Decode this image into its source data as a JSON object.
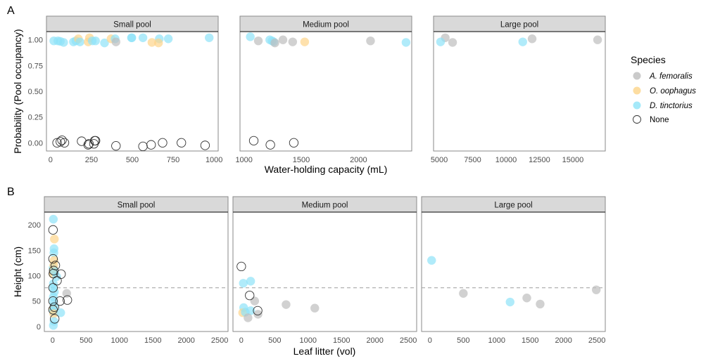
{
  "chart_data": [
    {
      "id": "A",
      "type": "scatter",
      "tag": "A",
      "ylabel": "Probability (Pool occupancy)",
      "xlabel": "Water-holding capacity (mL)",
      "yticks": [
        0.0,
        0.25,
        0.5,
        0.75,
        1.0
      ],
      "ytick_labels": [
        "0.00",
        "0.25",
        "0.50",
        "0.75",
        "1.00"
      ],
      "ylim": [
        -0.08,
        1.08
      ],
      "grid": false,
      "panels": [
        {
          "strip": "Small pool",
          "xlim": [
            -25,
            1025
          ],
          "xticks": [
            0,
            250,
            500,
            750,
            1000
          ],
          "points": [
            {
              "x": 20,
              "y": 0.99,
              "s": "D"
            },
            {
              "x": 45,
              "y": 0.99,
              "s": "D"
            },
            {
              "x": 60,
              "y": 0.985,
              "s": "D"
            },
            {
              "x": 80,
              "y": 0.975,
              "s": "D"
            },
            {
              "x": 140,
              "y": 0.98,
              "s": "D"
            },
            {
              "x": 155,
              "y": 0.99,
              "s": "D"
            },
            {
              "x": 170,
              "y": 1.01,
              "s": "O"
            },
            {
              "x": 180,
              "y": 0.98,
              "s": "D"
            },
            {
              "x": 230,
              "y": 0.98,
              "s": "O"
            },
            {
              "x": 238,
              "y": 1.02,
              "s": "O"
            },
            {
              "x": 255,
              "y": 0.99,
              "s": "D"
            },
            {
              "x": 275,
              "y": 0.99,
              "s": "D"
            },
            {
              "x": 330,
              "y": 0.97,
              "s": "D"
            },
            {
              "x": 370,
              "y": 1.01,
              "s": "O"
            },
            {
              "x": 395,
              "y": 1.01,
              "s": "D"
            },
            {
              "x": 400,
              "y": 0.98,
              "s": "A"
            },
            {
              "x": 495,
              "y": 1.02,
              "s": "D"
            },
            {
              "x": 497,
              "y": 1.02,
              "s": "D"
            },
            {
              "x": 565,
              "y": 1.02,
              "s": "D"
            },
            {
              "x": 620,
              "y": 0.975,
              "s": "O"
            },
            {
              "x": 665,
              "y": 1.01,
              "s": "D"
            },
            {
              "x": 660,
              "y": 0.97,
              "s": "O"
            },
            {
              "x": 720,
              "y": 1.01,
              "s": "D"
            },
            {
              "x": 970,
              "y": 1.02,
              "s": "D"
            },
            {
              "x": 40,
              "y": 0.0,
              "s": "N"
            },
            {
              "x": 60,
              "y": 0.01,
              "s": "N"
            },
            {
              "x": 70,
              "y": 0.025,
              "s": "N"
            },
            {
              "x": 85,
              "y": 0.0,
              "s": "N"
            },
            {
              "x": 190,
              "y": 0.015,
              "s": "N"
            },
            {
              "x": 230,
              "y": -0.02,
              "s": "N"
            },
            {
              "x": 235,
              "y": -0.01,
              "s": "N"
            },
            {
              "x": 265,
              "y": -0.01,
              "s": "N"
            },
            {
              "x": 270,
              "y": 0.02,
              "s": "N"
            },
            {
              "x": 275,
              "y": 0.02,
              "s": "N"
            },
            {
              "x": 400,
              "y": -0.03,
              "s": "N"
            },
            {
              "x": 565,
              "y": -0.035,
              "s": "N"
            },
            {
              "x": 615,
              "y": -0.02,
              "s": "N"
            },
            {
              "x": 685,
              "y": 0.0,
              "s": "N"
            },
            {
              "x": 800,
              "y": 0.0,
              "s": "N"
            },
            {
              "x": 945,
              "y": -0.025,
              "s": "N"
            }
          ]
        },
        {
          "strip": "Medium pool",
          "xlim": [
            965,
            2465
          ],
          "xticks": [
            1000,
            1500,
            2000
          ],
          "points": [
            {
              "x": 1055,
              "y": 1.03,
              "s": "D"
            },
            {
              "x": 1125,
              "y": 0.99,
              "s": "A"
            },
            {
              "x": 1225,
              "y": 1.0,
              "s": "D"
            },
            {
              "x": 1245,
              "y": 0.99,
              "s": "D"
            },
            {
              "x": 1260,
              "y": 0.98,
              "s": "D"
            },
            {
              "x": 1270,
              "y": 0.97,
              "s": "A"
            },
            {
              "x": 1340,
              "y": 1.0,
              "s": "A"
            },
            {
              "x": 1425,
              "y": 0.98,
              "s": "A"
            },
            {
              "x": 1530,
              "y": 0.98,
              "s": "O"
            },
            {
              "x": 2105,
              "y": 0.99,
              "s": "A"
            },
            {
              "x": 2415,
              "y": 0.975,
              "s": "D"
            },
            {
              "x": 1085,
              "y": 0.02,
              "s": "N"
            },
            {
              "x": 1230,
              "y": -0.02,
              "s": "N"
            },
            {
              "x": 1435,
              "y": 0.0,
              "s": "N"
            }
          ]
        },
        {
          "strip": "Large pool",
          "xlim": [
            4575,
            17425
          ],
          "xticks": [
            5000,
            7500,
            10000,
            12500,
            15000
          ],
          "points": [
            {
              "x": 5450,
              "y": 1.02,
              "s": "A"
            },
            {
              "x": 6000,
              "y": 0.975,
              "s": "A"
            },
            {
              "x": 5100,
              "y": 0.98,
              "s": "D"
            },
            {
              "x": 11250,
              "y": 0.98,
              "s": "D"
            },
            {
              "x": 11950,
              "y": 1.01,
              "s": "A"
            },
            {
              "x": 16850,
              "y": 1.0,
              "s": "A"
            }
          ]
        }
      ]
    },
    {
      "id": "B",
      "type": "scatter",
      "tag": "B",
      "ylabel": "Height (cm)",
      "xlabel": "Leaf litter (vol)",
      "yticks": [
        0,
        50,
        100,
        150,
        200
      ],
      "ytick_labels": [
        "0",
        "50",
        "100",
        "150",
        "200"
      ],
      "ylim": [
        -10,
        225
      ],
      "hline": {
        "y": 76,
        "style": "dashed"
      },
      "grid": false,
      "panels": [
        {
          "strip": "Small pool",
          "xlim": [
            -125,
            2625
          ],
          "xticks": [
            0,
            500,
            1000,
            1500,
            2000,
            2500
          ],
          "points": [
            {
              "x": 10,
              "y": 211,
              "s": "D"
            },
            {
              "x": 25,
              "y": 172,
              "s": "O"
            },
            {
              "x": 20,
              "y": 153,
              "s": "D"
            },
            {
              "x": 18,
              "y": 145,
              "s": "D"
            },
            {
              "x": 20,
              "y": 130,
              "s": "O"
            },
            {
              "x": 5,
              "y": 115,
              "s": "D"
            },
            {
              "x": 15,
              "y": 120,
              "s": "O"
            },
            {
              "x": 10,
              "y": 108,
              "s": "O"
            },
            {
              "x": 5,
              "y": 103,
              "s": "O"
            },
            {
              "x": 25,
              "y": 108,
              "s": "D"
            },
            {
              "x": 60,
              "y": 98,
              "s": "D"
            },
            {
              "x": 10,
              "y": 84,
              "s": "D"
            },
            {
              "x": 5,
              "y": 76,
              "s": "D"
            },
            {
              "x": 25,
              "y": 68,
              "s": "D"
            },
            {
              "x": 10,
              "y": 58,
              "s": "D"
            },
            {
              "x": 15,
              "y": 48,
              "s": "D"
            },
            {
              "x": 5,
              "y": 35,
              "s": "O"
            },
            {
              "x": 20,
              "y": 40,
              "s": "D"
            },
            {
              "x": 10,
              "y": 30,
              "s": "D"
            },
            {
              "x": 15,
              "y": 25,
              "s": "O"
            },
            {
              "x": 120,
              "y": 27,
              "s": "D"
            },
            {
              "x": 20,
              "y": 10,
              "s": "D"
            },
            {
              "x": 10,
              "y": 2,
              "s": "D"
            },
            {
              "x": 210,
              "y": 65,
              "s": "A"
            },
            {
              "x": 5,
              "y": 190,
              "s": "N"
            },
            {
              "x": 5,
              "y": 133,
              "s": "N"
            },
            {
              "x": 40,
              "y": 120,
              "s": "N"
            },
            {
              "x": 15,
              "y": 110,
              "s": "N"
            },
            {
              "x": 10,
              "y": 104,
              "s": "N"
            },
            {
              "x": 125,
              "y": 103,
              "s": "N"
            },
            {
              "x": 65,
              "y": 90,
              "s": "N"
            },
            {
              "x": 5,
              "y": 76,
              "s": "N"
            },
            {
              "x": 5,
              "y": 50,
              "s": "N"
            },
            {
              "x": 110,
              "y": 50,
              "s": "N"
            },
            {
              "x": 220,
              "y": 52,
              "s": "N"
            },
            {
              "x": 25,
              "y": 38,
              "s": "N"
            },
            {
              "x": 5,
              "y": 33,
              "s": "N"
            },
            {
              "x": 30,
              "y": 15,
              "s": "N"
            }
          ]
        },
        {
          "strip": "Medium pool",
          "xlim": [
            -125,
            2625
          ],
          "xticks": [
            0,
            500,
            1000,
            1500,
            2000,
            2500
          ],
          "points": [
            {
              "x": 30,
              "y": 85,
              "s": "D"
            },
            {
              "x": 140,
              "y": 89,
              "s": "D"
            },
            {
              "x": 200,
              "y": 50,
              "s": "A"
            },
            {
              "x": 670,
              "y": 43,
              "s": "A"
            },
            {
              "x": 1100,
              "y": 36,
              "s": "A"
            },
            {
              "x": 35,
              "y": 37,
              "s": "D"
            },
            {
              "x": 20,
              "y": 27,
              "s": "O"
            },
            {
              "x": 60,
              "y": 28,
              "s": "D"
            },
            {
              "x": 140,
              "y": 31,
              "s": "D"
            },
            {
              "x": 250,
              "y": 24,
              "s": "A"
            },
            {
              "x": 100,
              "y": 17,
              "s": "A"
            },
            {
              "x": 0,
              "y": 118,
              "s": "N"
            },
            {
              "x": 125,
              "y": 61,
              "s": "N"
            },
            {
              "x": 245,
              "y": 31,
              "s": "N"
            }
          ]
        },
        {
          "strip": "Large pool",
          "xlim": [
            -125,
            2625
          ],
          "xticks": [
            0,
            500,
            1000,
            1500,
            2000,
            2500
          ],
          "points": [
            {
              "x": 25,
              "y": 130,
              "s": "D"
            },
            {
              "x": 500,
              "y": 65,
              "s": "A"
            },
            {
              "x": 1200,
              "y": 48,
              "s": "D"
            },
            {
              "x": 1450,
              "y": 56,
              "s": "A"
            },
            {
              "x": 1650,
              "y": 44,
              "s": "A"
            },
            {
              "x": 2490,
              "y": 72,
              "s": "A"
            }
          ]
        }
      ]
    }
  ],
  "legend": {
    "title": "Species",
    "position": "right",
    "items": [
      {
        "key": "A",
        "label": "A. femoralis",
        "italic": true,
        "color": "#bdbdbd",
        "filled": true
      },
      {
        "key": "O",
        "label": "O. oophagus",
        "italic": true,
        "color": "#fdd48a",
        "filled": true
      },
      {
        "key": "D",
        "label": "D. tinctorius",
        "italic": true,
        "color": "#8ee3f8",
        "filled": true
      },
      {
        "key": "N",
        "label": "None",
        "italic": false,
        "color": "#333333",
        "filled": false
      }
    ]
  }
}
